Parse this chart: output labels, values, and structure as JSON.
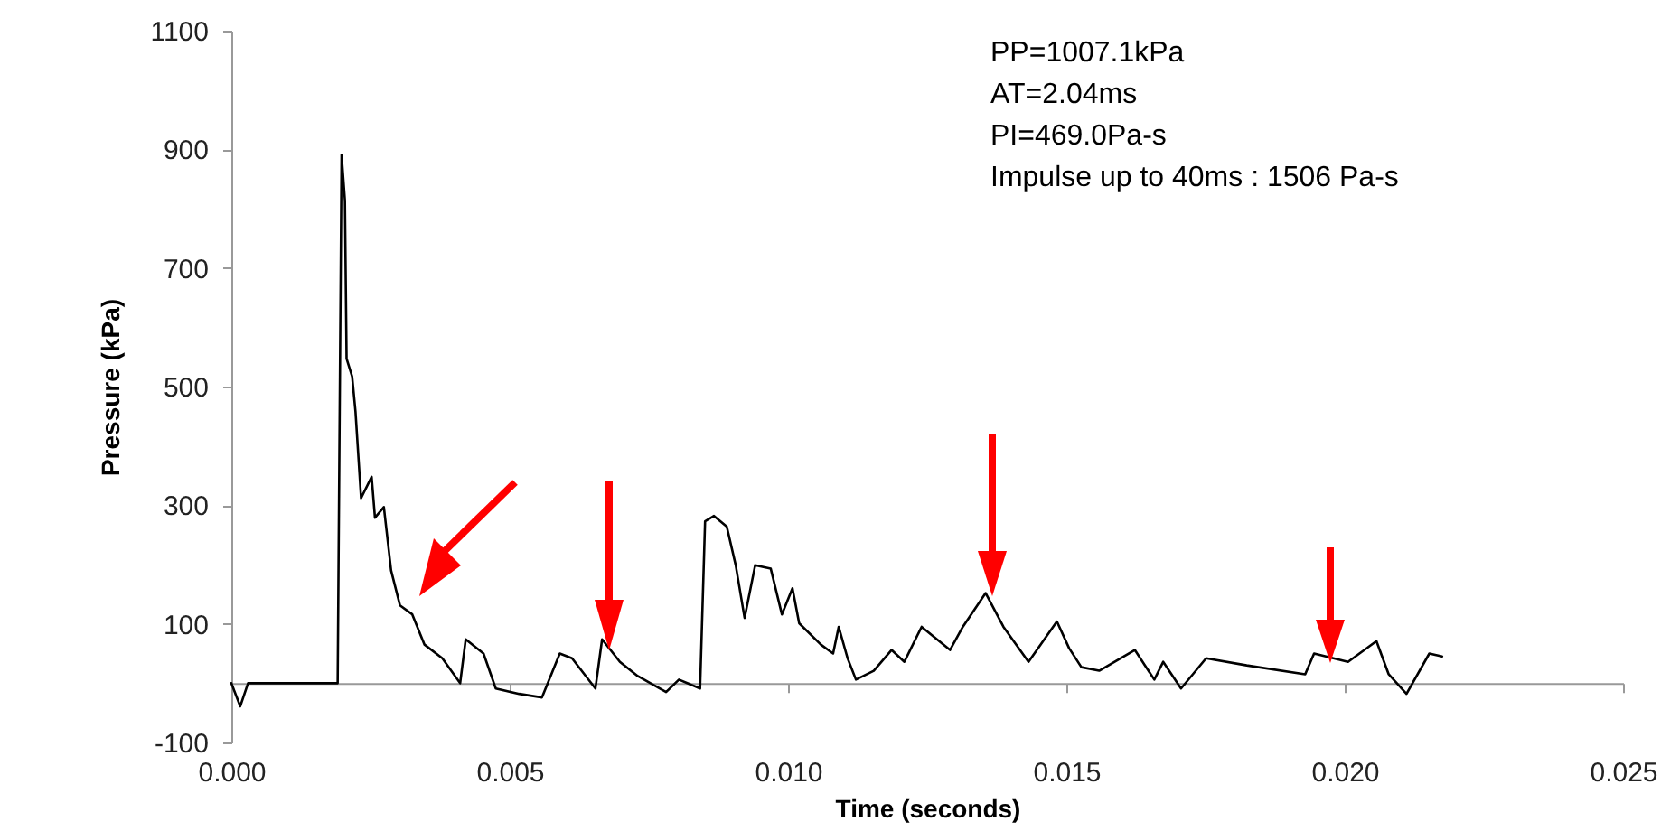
{
  "chart_data": {
    "type": "line",
    "xlabel": "Time (seconds)",
    "ylabel": "Pressure (kPa)",
    "annotations": [
      "PP=1007.1kPa",
      "AT=2.04ms",
      "PI=469.0Pa-s",
      "Impulse up to 40ms : 1506 Pa-s"
    ],
    "xlim": [
      0,
      0.025
    ],
    "xticks": [
      {
        "value": 0,
        "label": "0.000"
      },
      {
        "value": 0.005,
        "label": "0.005"
      },
      {
        "value": 0.01,
        "label": "0.010"
      },
      {
        "value": 0.015,
        "label": "0.015"
      },
      {
        "value": 0.02,
        "label": "0.020"
      },
      {
        "value": 0.025,
        "label": "0.025"
      }
    ],
    "ylim": [
      -100,
      1100
    ],
    "yticks": [
      -100,
      100,
      300,
      500,
      700,
      900,
      1100
    ],
    "grid": false,
    "marker": "none",
    "line_style": "solid",
    "series": [
      {
        "color": "#000000",
        "x": [
          0,
          0.00016,
          0.0003,
          0.00191,
          0.00198,
          0.00204,
          0.00207,
          0.00217,
          0.00223,
          0.00233,
          0.00252,
          0.00258,
          0.00274,
          0.00287,
          0.00303,
          0.00325,
          0.00347,
          0.00379,
          0.00411,
          0.00421,
          0.00453,
          0.00475,
          0.00517,
          0.00558,
          0.0059,
          0.00612,
          0.00654,
          0.00666,
          0.00698,
          0.0073,
          0.00781,
          0.00804,
          0.00842,
          0.00851,
          0.00867,
          0.0089,
          0.00906,
          0.00922,
          0.00941,
          0.00969,
          0.00989,
          0.01008,
          0.0102,
          0.01059,
          0.01081,
          0.01091,
          0.01107,
          0.01122,
          0.01154,
          0.01186,
          0.01209,
          0.0124,
          0.01291,
          0.01314,
          0.01355,
          0.01387,
          0.01432,
          0.01483,
          0.01505,
          0.01527,
          0.01559,
          0.01623,
          0.01658,
          0.01674,
          0.01706,
          0.01751,
          0.01824,
          0.01929,
          0.01945,
          0.02006,
          0.02057,
          0.02079,
          0.02111,
          0.02152,
          0.02175
        ],
        "values": [
          0,
          -39,
          0,
          0,
          891,
          814,
          547,
          517,
          458,
          312,
          348,
          279,
          297,
          190,
          131,
          116,
          65,
          42,
          0,
          74,
          50,
          -9,
          -18,
          -24,
          50,
          42,
          -9,
          74,
          36,
          12,
          -15,
          6,
          -9,
          273,
          282,
          264,
          199,
          110,
          199,
          193,
          116,
          160,
          101,
          65,
          50,
          95,
          42,
          6,
          21,
          56,
          36,
          95,
          56,
          95,
          152,
          95,
          36,
          104,
          59,
          27,
          21,
          56,
          6,
          36,
          -9,
          42,
          30,
          15,
          50,
          36,
          71,
          15,
          -18,
          50,
          45
        ]
      }
    ]
  }
}
